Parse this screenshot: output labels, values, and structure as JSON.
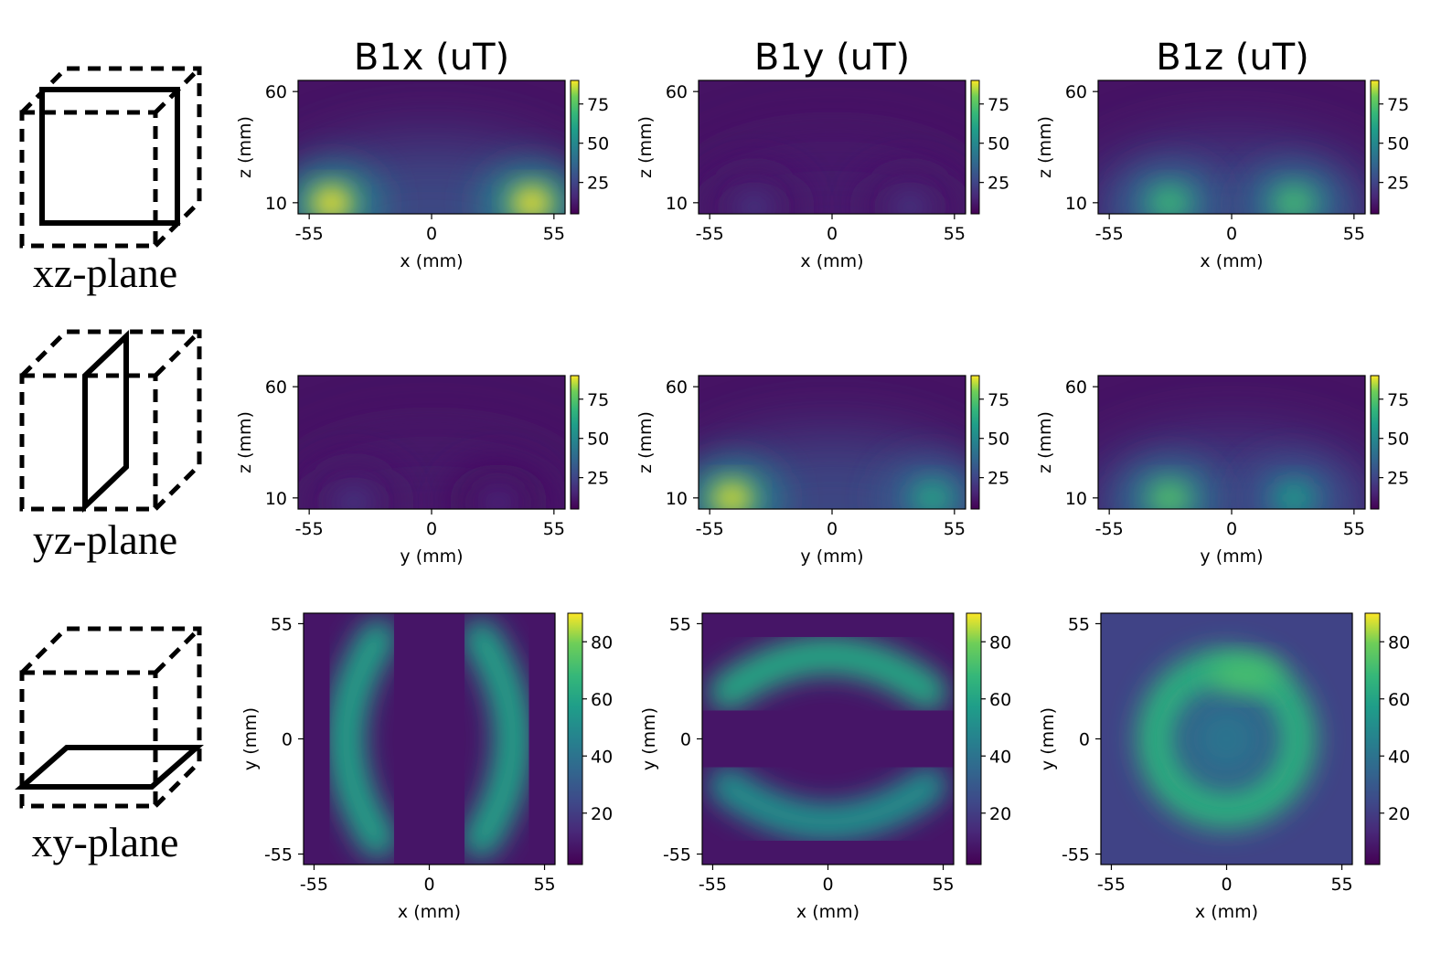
{
  "figure": {
    "column_titles": [
      "B1x (uT)",
      "B1y (uT)",
      "B1z (uT)"
    ],
    "rows": [
      {
        "plane_label": "xz-plane",
        "icon": "xz-plane-cube-icon"
      },
      {
        "plane_label": "yz-plane",
        "icon": "yz-plane-cube-icon"
      },
      {
        "plane_label": "xy-plane",
        "icon": "xy-plane-cube-icon"
      }
    ]
  },
  "chart_data": [
    {
      "type": "heatmap",
      "title": "B1x (uT)",
      "plane": "xz",
      "xlabel": "x (mm)",
      "ylabel": "z (mm)",
      "xticks": [
        "-55",
        "0",
        "55"
      ],
      "yticks": [
        "60",
        "10"
      ],
      "xlim": [
        -60,
        60
      ],
      "ylim": [
        5,
        65
      ],
      "colorbar_ticks": [
        "75",
        "50",
        "25"
      ],
      "colorbar_range": [
        5,
        90
      ],
      "colormap": "viridis",
      "peak_uT": 90,
      "hotspots": [
        {
          "x": -45,
          "z": 10,
          "value": 90
        },
        {
          "x": 45,
          "z": 10,
          "value": 90
        }
      ]
    },
    {
      "type": "heatmap",
      "title": "B1y (uT)",
      "plane": "xz",
      "xlabel": "x (mm)",
      "ylabel": "z (mm)",
      "xticks": [
        "-55",
        "0",
        "55"
      ],
      "yticks": [
        "60",
        "10"
      ],
      "xlim": [
        -60,
        60
      ],
      "ylim": [
        5,
        65
      ],
      "colorbar_ticks": [
        "75",
        "50",
        "25"
      ],
      "colorbar_range": [
        5,
        90
      ],
      "colormap": "viridis",
      "peak_uT": 22,
      "hotspots": [
        {
          "x": -35,
          "z": 8,
          "value": 20
        },
        {
          "x": 35,
          "z": 8,
          "value": 20
        }
      ]
    },
    {
      "type": "heatmap",
      "title": "B1z (uT)",
      "plane": "xz",
      "xlabel": "x (mm)",
      "ylabel": "z (mm)",
      "xticks": [
        "-55",
        "0",
        "55"
      ],
      "yticks": [
        "60",
        "10"
      ],
      "xlim": [
        -60,
        60
      ],
      "ylim": [
        5,
        65
      ],
      "colorbar_ticks": [
        "75",
        "50",
        "25"
      ],
      "colorbar_range": [
        5,
        90
      ],
      "colormap": "viridis",
      "peak_uT": 75,
      "hotspots": [
        {
          "x": -28,
          "z": 10,
          "value": 70
        },
        {
          "x": 28,
          "z": 10,
          "value": 72
        }
      ]
    },
    {
      "type": "heatmap",
      "title": "B1x (uT)",
      "plane": "yz",
      "xlabel": "y (mm)",
      "ylabel": "z (mm)",
      "xticks": [
        "-55",
        "0",
        "55"
      ],
      "yticks": [
        "60",
        "10"
      ],
      "xlim": [
        -60,
        60
      ],
      "ylim": [
        5,
        65
      ],
      "colorbar_ticks": [
        "75",
        "50",
        "25"
      ],
      "colorbar_range": [
        5,
        90
      ],
      "colormap": "viridis",
      "peak_uT": 20,
      "hotspots": [
        {
          "x": -35,
          "z": 8,
          "value": 20
        },
        {
          "x": 30,
          "z": 8,
          "value": 16
        }
      ]
    },
    {
      "type": "heatmap",
      "title": "B1y (uT)",
      "plane": "yz",
      "xlabel": "y (mm)",
      "ylabel": "z (mm)",
      "xticks": [
        "-55",
        "0",
        "55"
      ],
      "yticks": [
        "60",
        "10"
      ],
      "xlim": [
        -60,
        60
      ],
      "ylim": [
        5,
        65
      ],
      "colorbar_ticks": [
        "75",
        "50",
        "25"
      ],
      "colorbar_range": [
        5,
        90
      ],
      "colormap": "viridis",
      "peak_uT": 88,
      "hotspots": [
        {
          "x": -45,
          "z": 10,
          "value": 88
        },
        {
          "x": 45,
          "z": 10,
          "value": 62
        }
      ]
    },
    {
      "type": "heatmap",
      "title": "B1z (uT)",
      "plane": "yz",
      "xlabel": "y (mm)",
      "ylabel": "z (mm)",
      "xticks": [
        "-55",
        "0",
        "55"
      ],
      "yticks": [
        "60",
        "10"
      ],
      "xlim": [
        -60,
        60
      ],
      "ylim": [
        5,
        65
      ],
      "colorbar_ticks": [
        "75",
        "50",
        "25"
      ],
      "colorbar_range": [
        5,
        90
      ],
      "colormap": "viridis",
      "peak_uT": 75,
      "hotspots": [
        {
          "x": -28,
          "z": 10,
          "value": 75
        },
        {
          "x": 28,
          "z": 10,
          "value": 58
        }
      ]
    },
    {
      "type": "heatmap",
      "title": "B1x (uT)",
      "plane": "xy",
      "xlabel": "x (mm)",
      "ylabel": "y (mm)",
      "xticks": [
        "-55",
        "0",
        "55"
      ],
      "yticks": [
        "55",
        "0",
        "-55"
      ],
      "xlim": [
        -60,
        60
      ],
      "ylim": [
        -60,
        60
      ],
      "colorbar_ticks": [
        "80",
        "60",
        "40",
        "20"
      ],
      "colorbar_range": [
        2,
        90
      ],
      "colormap": "viridis",
      "peak_uT": 65,
      "hotspots": [
        {
          "x": -42,
          "y": 0,
          "value": 65
        },
        {
          "x": 42,
          "y": 0,
          "value": 65
        }
      ]
    },
    {
      "type": "heatmap",
      "title": "B1y (uT)",
      "plane": "xy",
      "xlabel": "x (mm)",
      "ylabel": "y (mm)",
      "xticks": [
        "-55",
        "0",
        "55"
      ],
      "yticks": [
        "55",
        "0",
        "-55"
      ],
      "xlim": [
        -60,
        60
      ],
      "ylim": [
        -60,
        60
      ],
      "colorbar_ticks": [
        "80",
        "60",
        "40",
        "20"
      ],
      "colorbar_range": [
        2,
        90
      ],
      "colormap": "viridis",
      "peak_uT": 68,
      "hotspots": [
        {
          "x": 0,
          "y": 42,
          "value": 68
        },
        {
          "x": 0,
          "y": -42,
          "value": 58
        }
      ]
    },
    {
      "type": "heatmap",
      "title": "B1z (uT)",
      "plane": "xy",
      "xlabel": "x (mm)",
      "ylabel": "y (mm)",
      "xticks": [
        "-55",
        "0",
        "55"
      ],
      "yticks": [
        "55",
        "0",
        "-55"
      ],
      "xlim": [
        -60,
        60
      ],
      "ylim": [
        -60,
        60
      ],
      "colorbar_ticks": [
        "80",
        "60",
        "40",
        "20"
      ],
      "colorbar_range": [
        2,
        90
      ],
      "colormap": "viridis",
      "peak_uT": 72,
      "ring": {
        "radius_mm": 30,
        "value": 65,
        "center_value": 40
      }
    }
  ],
  "colors": {
    "viridis_low": "#440154",
    "viridis_mid": "#21918c",
    "viridis_high": "#fde725"
  }
}
